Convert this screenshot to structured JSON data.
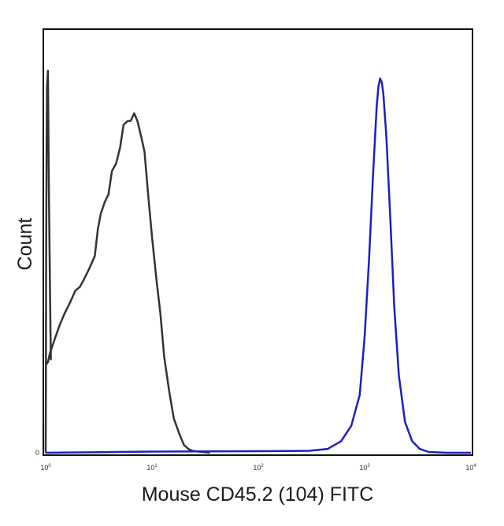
{
  "chart_data": {
    "type": "line",
    "title": "",
    "xlabel": "Mouse CD45.2 (104) FITC",
    "ylabel": "Count",
    "x_scale": "log",
    "xlim": [
      1,
      10000
    ],
    "ylim": [
      0,
      1
    ],
    "grid": false,
    "x_tick_labels": [
      {
        "base": "10",
        "exp": "0",
        "value": 1
      },
      {
        "base": "10",
        "exp": "1",
        "value": 10
      },
      {
        "base": "10",
        "exp": "2",
        "value": 100
      },
      {
        "base": "10",
        "exp": "3",
        "value": 1000
      },
      {
        "base": "10",
        "exp": "4",
        "value": 10000
      }
    ],
    "y_tick_labels": [
      {
        "text": "0",
        "value": 0
      }
    ],
    "series": [
      {
        "color": "#333333",
        "x": [
          1,
          1.02,
          1.05,
          1.1,
          1.2,
          1.35,
          1.5,
          1.7,
          1.9,
          2.1,
          2.3,
          2.6,
          2.9,
          3.1,
          3.3,
          3.6,
          3.9,
          4.2,
          4.6,
          5.0,
          5.4,
          5.9,
          6.3,
          6.8,
          7.3,
          7.9,
          8.5,
          9.2,
          10,
          11,
          12,
          13,
          14.5,
          16,
          18,
          20,
          22,
          24,
          27,
          30,
          35
        ],
        "y": [
          0.24,
          0.23,
          0.235,
          0.26,
          0.29,
          0.33,
          0.36,
          0.39,
          0.42,
          0.43,
          0.45,
          0.48,
          0.51,
          0.58,
          0.62,
          0.65,
          0.67,
          0.73,
          0.75,
          0.79,
          0.85,
          0.86,
          0.86,
          0.88,
          0.86,
          0.82,
          0.78,
          0.67,
          0.56,
          0.45,
          0.36,
          0.25,
          0.16,
          0.09,
          0.05,
          0.02,
          0.01,
          0.005,
          0.003,
          0.002,
          0.0
        ]
      },
      {
        "color": "#333333",
        "x": [
          1,
          1.005,
          1.01,
          1.02,
          1.03,
          1.05,
          1.07,
          1.1,
          1.12
        ],
        "y": [
          0.0,
          0.2,
          0.5,
          0.8,
          0.95,
          0.99,
          0.7,
          0.4,
          0.24
        ]
      },
      {
        "color": "#1f1fbf",
        "x": [
          1,
          10,
          100,
          300,
          450,
          600,
          750,
          900,
          1000,
          1100,
          1200,
          1300,
          1350,
          1400,
          1450,
          1500,
          1600,
          1750,
          1900,
          2100,
          2400,
          2800,
          3300,
          4000,
          6000,
          10000
        ],
        "y": [
          0.0,
          0.003,
          0.004,
          0.005,
          0.01,
          0.03,
          0.07,
          0.15,
          0.3,
          0.5,
          0.72,
          0.9,
          0.95,
          0.97,
          0.96,
          0.93,
          0.82,
          0.6,
          0.38,
          0.2,
          0.08,
          0.03,
          0.01,
          0.002,
          0.0,
          0.0
        ]
      }
    ]
  }
}
